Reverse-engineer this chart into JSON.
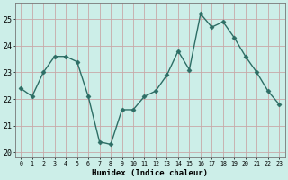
{
  "x": [
    0,
    1,
    2,
    3,
    4,
    5,
    6,
    7,
    8,
    9,
    10,
    11,
    12,
    13,
    14,
    15,
    16,
    17,
    18,
    19,
    20,
    21,
    22,
    23
  ],
  "y": [
    22.4,
    22.1,
    23.0,
    23.6,
    23.6,
    23.4,
    22.1,
    20.4,
    20.3,
    21.6,
    21.6,
    22.1,
    22.3,
    22.9,
    23.8,
    23.1,
    25.2,
    24.7,
    24.9,
    24.3,
    23.6,
    23.0,
    22.3,
    21.8
  ],
  "xlabel": "Humidex (Indice chaleur)",
  "line_color": "#2d6e65",
  "bg_color": "#cceee8",
  "grid_color": "#c8a8a8",
  "ylim": [
    19.8,
    25.6
  ],
  "xlim": [
    -0.5,
    23.5
  ],
  "yticks": [
    20,
    21,
    22,
    23,
    24,
    25
  ],
  "xticks": [
    0,
    1,
    2,
    3,
    4,
    5,
    6,
    7,
    8,
    9,
    10,
    11,
    12,
    13,
    14,
    15,
    16,
    17,
    18,
    19,
    20,
    21,
    22,
    23
  ],
  "markersize": 2.5,
  "linewidth": 1.0
}
